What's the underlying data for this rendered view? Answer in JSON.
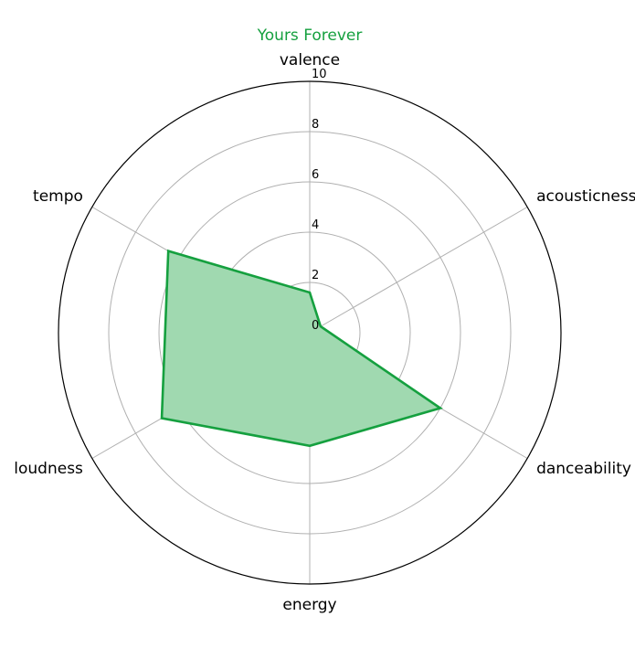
{
  "chart_data": {
    "type": "radar",
    "title": "Yours Forever",
    "title_color": "#15a03f",
    "axes": [
      "valence",
      "acousticness",
      "danceability",
      "energy",
      "loudness",
      "tempo"
    ],
    "series": [
      {
        "values": [
          1.6,
          0.5,
          6.0,
          4.5,
          6.8,
          6.5
        ],
        "line_color": "#15a03f",
        "fill_color": "#a0d9b0"
      }
    ],
    "rlim": [
      0,
      10
    ],
    "r_ticks": [
      "0",
      "2",
      "4",
      "6",
      "8",
      "10"
    ],
    "grid": true
  }
}
